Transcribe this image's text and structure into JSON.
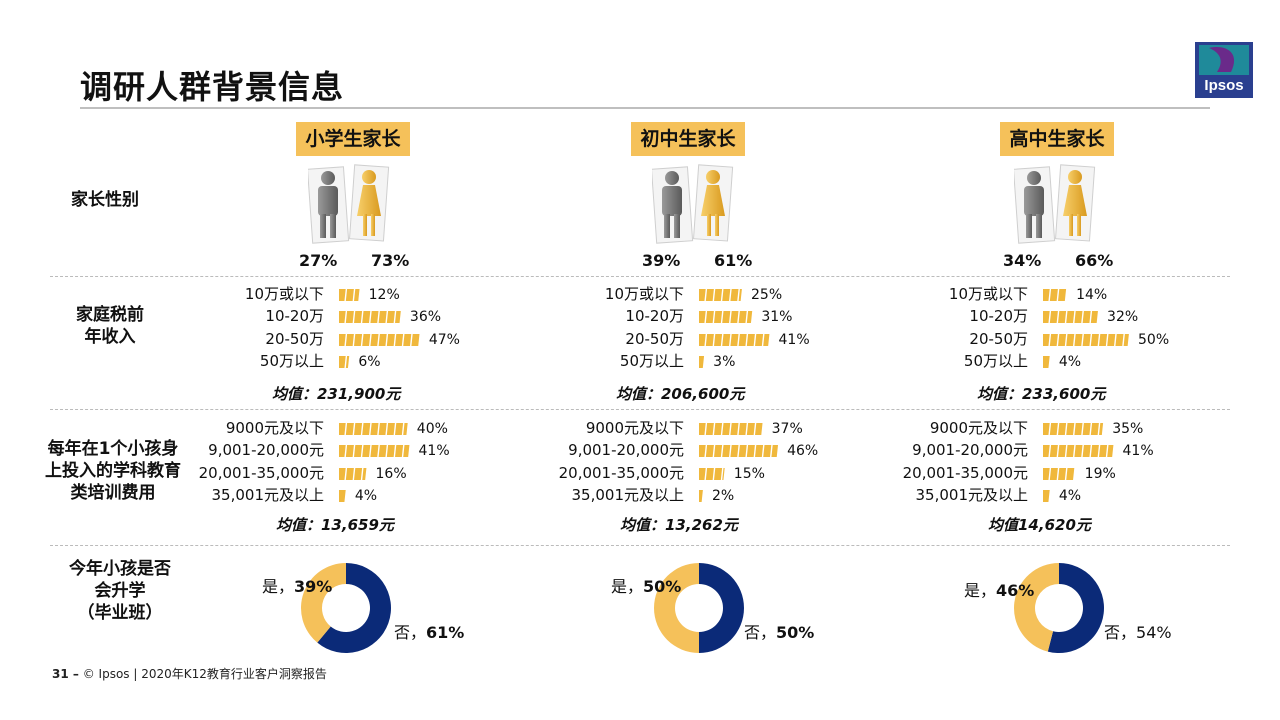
{
  "page": {
    "title": "调研人群背景信息",
    "logo_text": "Ipsos",
    "footer": {
      "page_num": "31 –",
      "text": "© Ipsos | 2020年K12教育行业客户洞察报告"
    }
  },
  "row_labels": {
    "gender": "家长性别",
    "income": [
      "家庭税前",
      "年收入"
    ],
    "spend": [
      "每年在1个小孩身",
      "上投入的学科教育",
      "类培训费用"
    ],
    "grad": [
      "今年小孩是否",
      "会升学",
      "（毕业班）"
    ]
  },
  "colors": {
    "accent": "#f5c15a",
    "navy": "#0b2a78",
    "bar": "#f0b83c"
  },
  "groups": [
    {
      "name": "小学生家长",
      "gender": {
        "male": "27%",
        "female": "73%"
      }
    },
    {
      "name": "初中生家长",
      "gender": {
        "male": "39%",
        "female": "61%"
      }
    },
    {
      "name": "高中生家长",
      "gender": {
        "male": "34%",
        "female": "66%"
      }
    }
  ],
  "chart_data": [
    {
      "type": "bar",
      "group": "小学生家长",
      "categories": [
        "10万或以下",
        "10-20万",
        "20-50万",
        "50万以上"
      ],
      "values": [
        12,
        36,
        47,
        6
      ],
      "value_labels": [
        "12%",
        "36%",
        "47%",
        "6%"
      ],
      "note": "均值：231,900元"
    },
    {
      "type": "bar",
      "group": "初中生家长",
      "categories": [
        "10万或以下",
        "10-20万",
        "20-50万",
        "50万以上"
      ],
      "values": [
        25,
        31,
        41,
        3
      ],
      "value_labels": [
        "25%",
        "31%",
        "41%",
        "3%"
      ],
      "note": "均值：206,600元"
    },
    {
      "type": "bar",
      "group": "高中生家长",
      "categories": [
        "10万或以下",
        "10-20万",
        "20-50万",
        "50万以上"
      ],
      "values": [
        14,
        32,
        50,
        4
      ],
      "value_labels": [
        "14%",
        "32%",
        "50%",
        "4%"
      ],
      "note": "均值：233,600元"
    },
    {
      "type": "bar",
      "group": "小学生家长",
      "categories": [
        "9000元及以下",
        "9,001-20,000元",
        "20,001-35,000元",
        "35,001元及以上"
      ],
      "values": [
        40,
        41,
        16,
        4
      ],
      "value_labels": [
        "40%",
        "41%",
        "16%",
        "4%"
      ],
      "note": "均值：13,659元"
    },
    {
      "type": "bar",
      "group": "初中生家长",
      "categories": [
        "9000元及以下",
        "9,001-20,000元",
        "20,001-35,000元",
        "35,001元及以上"
      ],
      "values": [
        37,
        46,
        15,
        2
      ],
      "value_labels": [
        "37%",
        "46%",
        "15%",
        "2%"
      ],
      "note": "均值：13,262元"
    },
    {
      "type": "bar",
      "group": "高中生家长",
      "categories": [
        "9000元及以下",
        "9,001-20,000元",
        "20,001-35,000元",
        "35,001元及以上"
      ],
      "values": [
        35,
        41,
        19,
        4
      ],
      "value_labels": [
        "35%",
        "41%",
        "19%",
        "4%"
      ],
      "note": "均值14,620元"
    },
    {
      "type": "pie",
      "group": "小学生家长",
      "categories": [
        "是",
        "否"
      ],
      "values": [
        39,
        61
      ],
      "value_labels": [
        "39%",
        "61%"
      ]
    },
    {
      "type": "pie",
      "group": "初中生家长",
      "categories": [
        "是",
        "否"
      ],
      "values": [
        50,
        50
      ],
      "value_labels": [
        "50%",
        "50%"
      ]
    },
    {
      "type": "pie",
      "group": "高中生家长",
      "categories": [
        "是",
        "否"
      ],
      "values": [
        46,
        54
      ],
      "value_labels": [
        "46%",
        "54%"
      ]
    }
  ]
}
